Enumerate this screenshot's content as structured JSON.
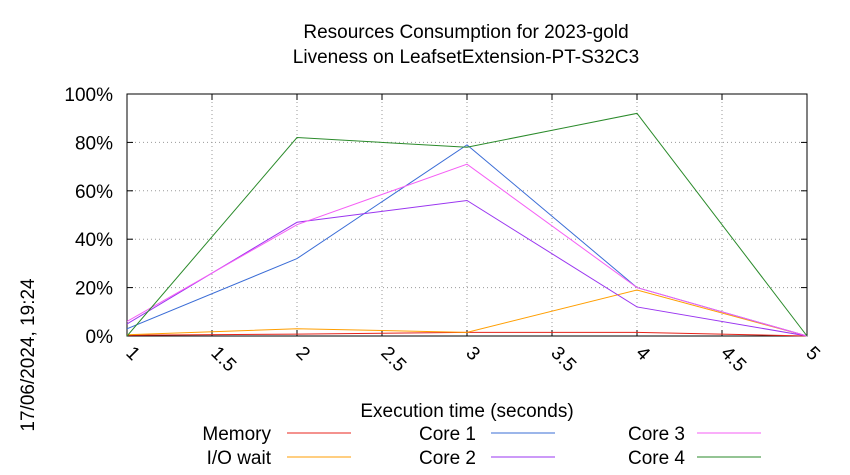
{
  "chart_data": {
    "type": "line",
    "title": "Resources Consumption for 2023-gold",
    "subtitle": "Liveness on LeafsetExtension-PT-S32C3",
    "xlabel": "Execution time (seconds)",
    "ylabel": "",
    "side_label": "17/06/2024, 19:24",
    "xlim": [
      1,
      5
    ],
    "ylim": [
      0,
      100
    ],
    "x_ticks": [
      {
        "value": 1,
        "label": "1"
      },
      {
        "value": 1.5,
        "label": "1.5"
      },
      {
        "value": 2,
        "label": "2"
      },
      {
        "value": 2.5,
        "label": "2.5"
      },
      {
        "value": 3,
        "label": "3"
      },
      {
        "value": 3.5,
        "label": "3.5"
      },
      {
        "value": 4,
        "label": "4"
      },
      {
        "value": 4.5,
        "label": "4.5"
      },
      {
        "value": 5,
        "label": "5"
      }
    ],
    "y_ticks": [
      {
        "value": 0,
        "label": "0%"
      },
      {
        "value": 20,
        "label": "20%"
      },
      {
        "value": 40,
        "label": "40%"
      },
      {
        "value": 60,
        "label": "60%"
      },
      {
        "value": 80,
        "label": "80%"
      },
      {
        "value": 100,
        "label": "100%"
      }
    ],
    "grid": true,
    "legend_position": "bottom",
    "x": [
      1,
      2,
      3,
      4,
      5
    ],
    "series": [
      {
        "name": "Memory",
        "color": "#e8251c",
        "values": [
          0.3,
          0.8,
          1.5,
          1.5,
          0
        ]
      },
      {
        "name": "I/O wait",
        "color": "#ff9e00",
        "values": [
          0.5,
          3,
          1.5,
          19,
          0
        ]
      },
      {
        "name": "Core 1",
        "color": "#3a6cd6",
        "values": [
          3,
          32,
          79,
          20,
          0
        ]
      },
      {
        "name": "Core 2",
        "color": "#9a35f0",
        "values": [
          5,
          47,
          56,
          12,
          0
        ]
      },
      {
        "name": "Core 3",
        "color": "#f55ef5",
        "values": [
          6,
          46,
          71,
          20,
          0
        ]
      },
      {
        "name": "Core 4",
        "color": "#2a8a2a",
        "values": [
          0,
          82,
          78,
          92,
          0
        ]
      }
    ]
  }
}
